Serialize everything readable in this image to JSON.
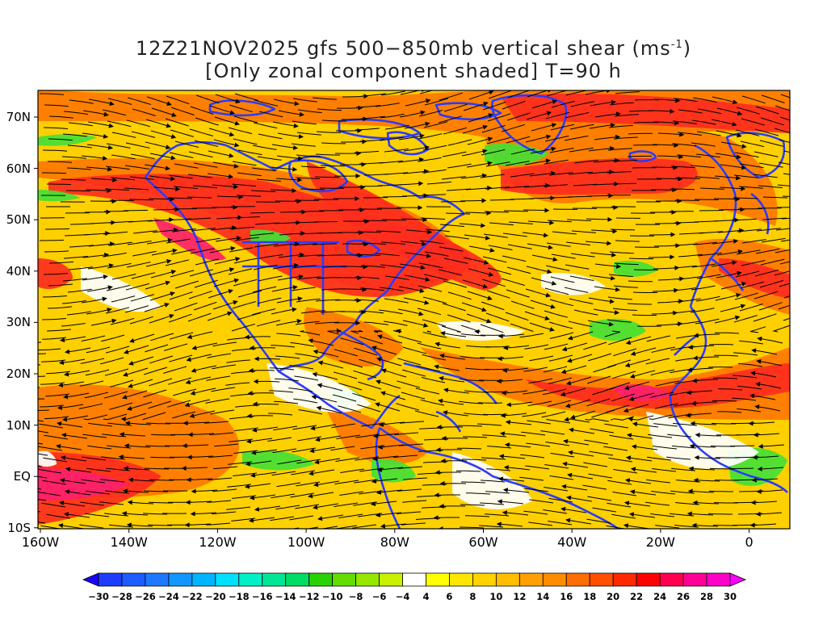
{
  "title": {
    "line1_main": "12Z21NOV2025 gfs 500−850mb vertical shear (ms",
    "line1_sup": "-1",
    "line1_end": ")",
    "line2": "[Only zonal component shaded] T=90 h"
  },
  "lat_labels": [
    "70N",
    "60N",
    "50N",
    "40N",
    "30N",
    "20N",
    "10N",
    "EQ",
    "10S"
  ],
  "lon_labels": [
    "160W",
    "140W",
    "120W",
    "100W",
    "80W",
    "60W",
    "40W",
    "20W",
    "0"
  ],
  "colorbar": {
    "labels": [
      "-30",
      "-28",
      "-26",
      "-24",
      "-22",
      "-20",
      "-18",
      "-16",
      "-14",
      "-12",
      "-10",
      "-8",
      "-6",
      "-4",
      "4",
      "6",
      "8",
      "10",
      "12",
      "14",
      "16",
      "18",
      "20",
      "22",
      "24",
      "26",
      "28",
      "30"
    ],
    "colors": [
      "#1a00ff",
      "#1e3cff",
      "#1f5cff",
      "#1e78ff",
      "#1496ff",
      "#00b4ff",
      "#00e0ff",
      "#00f0c8",
      "#00e696",
      "#00dc64",
      "#28d200",
      "#64dc00",
      "#96e600",
      "#c8f000",
      "#ffffff",
      "#ffff00",
      "#ffe600",
      "#ffd200",
      "#ffbe00",
      "#ffa000",
      "#ff8c00",
      "#ff6e00",
      "#ff5000",
      "#ff2800",
      "#ff0000",
      "#ff0050",
      "#ff0096",
      "#ff00c8",
      "#ff00ff"
    ]
  },
  "map_colors": {
    "coast": "#2a3cff",
    "streamline": "#000000",
    "red": "#ff2d1e",
    "orange": "#ff7800",
    "yellow": "#ffd000",
    "green": "#44e036",
    "magenta": "#ff1f6b"
  }
}
